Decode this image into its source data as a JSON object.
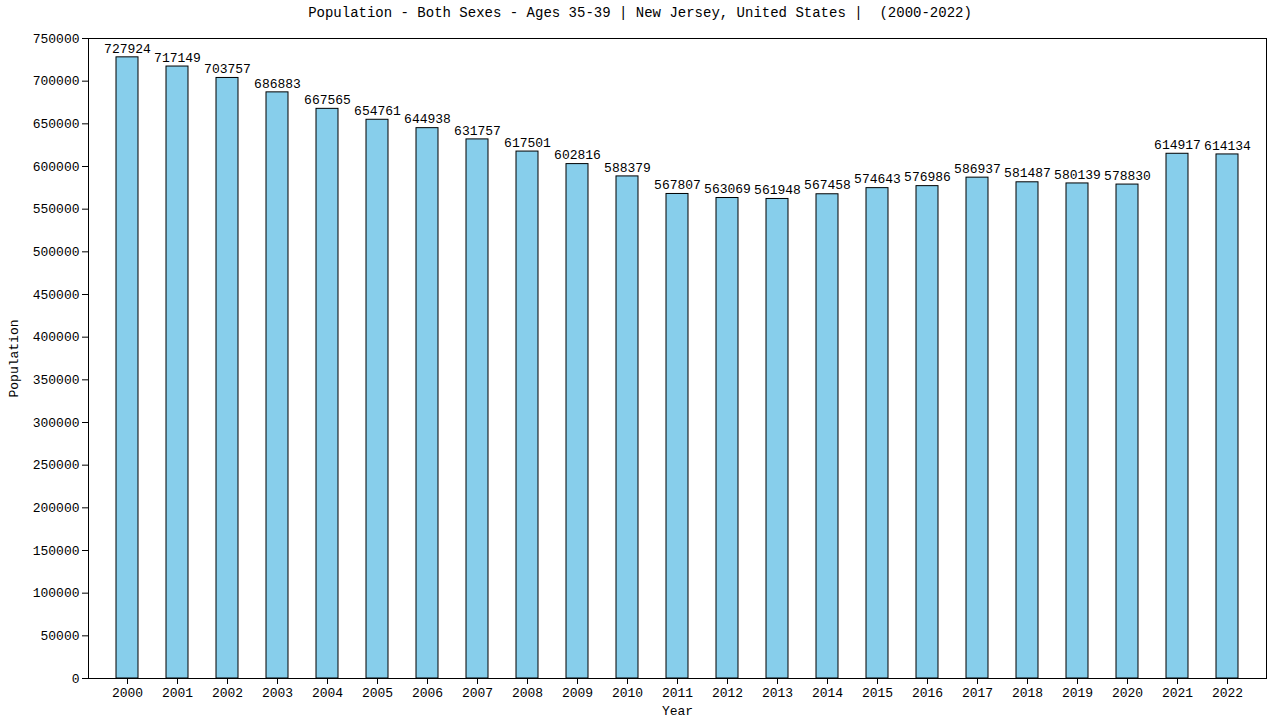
{
  "chart_data": {
    "type": "bar",
    "title": "Population - Both Sexes - Ages 35-39 | New Jersey, United States |  (2000-2022)",
    "x_label": "Year",
    "y_label": "Population",
    "categories": [
      "2000",
      "2001",
      "2002",
      "2003",
      "2004",
      "2005",
      "2006",
      "2007",
      "2008",
      "2009",
      "2010",
      "2011",
      "2012",
      "2013",
      "2014",
      "2015",
      "2016",
      "2017",
      "2018",
      "2019",
      "2020",
      "2021",
      "2022"
    ],
    "values": [
      727924,
      717149,
      703757,
      686883,
      667565,
      654761,
      644938,
      631757,
      617501,
      602816,
      588379,
      567807,
      563069,
      561948,
      567458,
      574643,
      576986,
      586937,
      581487,
      580139,
      578830,
      614917,
      614134
    ],
    "color": "#87ceeb",
    "ylim": [
      0,
      750000
    ],
    "yticks": [
      0,
      50000,
      100000,
      150000,
      200000,
      250000,
      300000,
      350000,
      400000,
      450000,
      500000,
      550000,
      600000,
      650000,
      700000,
      750000
    ],
    "grid": false,
    "data_labels": true
  }
}
